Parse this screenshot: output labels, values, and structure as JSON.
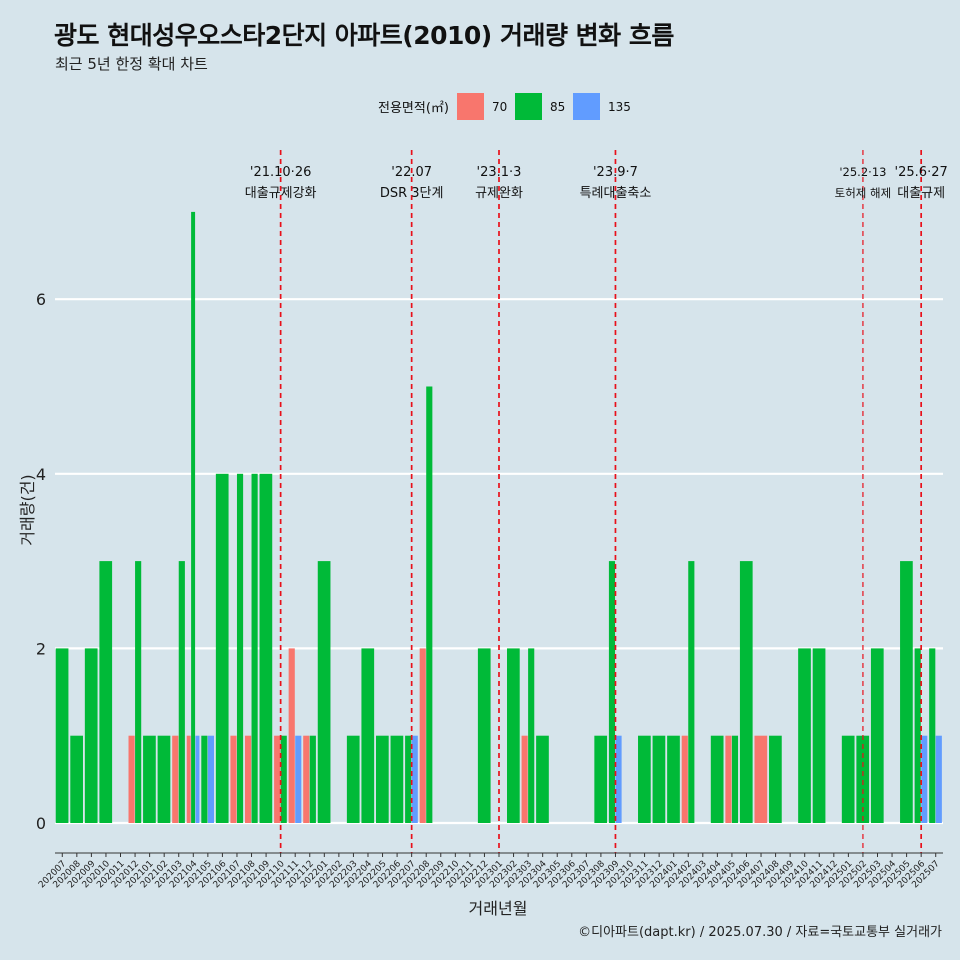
{
  "title": "광도 현대성우오스타2단지 아파트(2010) 거래량 변화 흐름",
  "subtitle": "최근 5년 한정 확대 차트",
  "caption": "©디아파트(dapt.kr) / 2025.07.30 / 자료=국토교통부 실거래가",
  "colors": {
    "background": "#d6e4eb",
    "s70": "#f8766d",
    "s85": "#00ba38",
    "s135": "#619cff",
    "event_line": "#e8101a",
    "grid": "#ffffff"
  },
  "chart_data": {
    "type": "bar",
    "stacked": false,
    "xlabel": "거래년월",
    "ylabel": "거래량(건)",
    "ylim": [
      0,
      7
    ],
    "yticks": [
      0,
      2,
      4,
      6
    ],
    "legend_position": "top",
    "legend_title": "전용면적(㎡)",
    "categories": [
      "202007",
      "202008",
      "202009",
      "202010",
      "202011",
      "202012",
      "202101",
      "202102",
      "202103",
      "202104",
      "202105",
      "202106",
      "202107",
      "202108",
      "202109",
      "202110",
      "202111",
      "202112",
      "202201",
      "202202",
      "202203",
      "202204",
      "202205",
      "202206",
      "202207",
      "202208",
      "202209",
      "202210",
      "202211",
      "202212",
      "202301",
      "202302",
      "202303",
      "202304",
      "202305",
      "202306",
      "202307",
      "202308",
      "202309",
      "202310",
      "202311",
      "202312",
      "202401",
      "202402",
      "202403",
      "202404",
      "202405",
      "202406",
      "202407",
      "202408",
      "202409",
      "202410",
      "202411",
      "202412",
      "202501",
      "202502",
      "202503",
      "202504",
      "202505",
      "202506",
      "202507"
    ],
    "series": [
      {
        "name": "70",
        "color": "#f8766d",
        "values": [
          0,
          0,
          0,
          0,
          0,
          1,
          0,
          0,
          1,
          1,
          0,
          0,
          1,
          1,
          0,
          1,
          2,
          1,
          0,
          0,
          0,
          0,
          0,
          0,
          0,
          2,
          0,
          0,
          0,
          0,
          0,
          0,
          1,
          0,
          0,
          0,
          0,
          0,
          0,
          0,
          0,
          0,
          0,
          1,
          0,
          0,
          1,
          0,
          1,
          0,
          0,
          0,
          0,
          0,
          0,
          0,
          0,
          0,
          0,
          0,
          0
        ]
      },
      {
        "name": "85",
        "color": "#00ba38",
        "values": [
          2,
          1,
          2,
          3,
          0,
          3,
          1,
          1,
          3,
          7,
          1,
          4,
          4,
          4,
          4,
          1,
          0,
          1,
          3,
          0,
          1,
          2,
          1,
          1,
          1,
          5,
          0,
          0,
          0,
          2,
          0,
          2,
          2,
          1,
          0,
          0,
          0,
          1,
          3,
          0,
          1,
          1,
          1,
          3,
          0,
          1,
          1,
          3,
          0,
          1,
          0,
          2,
          2,
          0,
          1,
          1,
          2,
          0,
          3,
          2,
          2
        ]
      },
      {
        "name": "135",
        "color": "#619cff",
        "values": [
          0,
          0,
          0,
          0,
          0,
          0,
          0,
          0,
          0,
          1,
          1,
          0,
          0,
          0,
          0,
          0,
          1,
          0,
          0,
          0,
          0,
          0,
          0,
          0,
          1,
          0,
          0,
          0,
          0,
          0,
          0,
          0,
          0,
          0,
          0,
          0,
          0,
          0,
          1,
          0,
          0,
          0,
          0,
          0,
          0,
          0,
          0,
          0,
          0,
          0,
          0,
          0,
          0,
          0,
          0,
          0,
          0,
          0,
          0,
          1,
          1
        ]
      }
    ],
    "events": [
      {
        "month": "202110",
        "line1": "'21.10·26",
        "line2": "대출규제강화",
        "small": false
      },
      {
        "month": "202207",
        "line1": "'22.07",
        "line2": "DSR 3단계",
        "small": false
      },
      {
        "month": "202301",
        "line1": "'23.1·3",
        "line2": "규제완화",
        "small": false
      },
      {
        "month": "202309",
        "line1": "'23.9·7",
        "line2": "특례대출축소",
        "small": false
      },
      {
        "month": "202502",
        "line1": "'25.2·13",
        "line2": "토허제 해제",
        "small": true
      },
      {
        "month": "202506",
        "line1": "'25.6·27",
        "line2": "대출규제",
        "small": false
      }
    ]
  }
}
